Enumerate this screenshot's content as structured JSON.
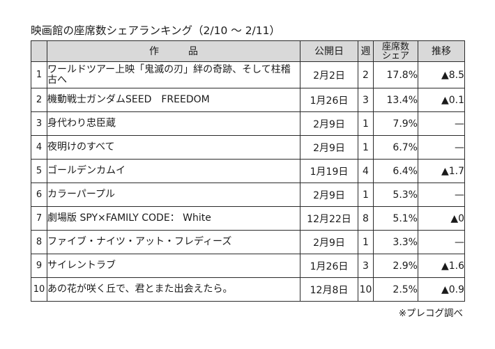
{
  "title": "映画館の座席数シェアランキング（2/10 ～ 2/11）",
  "headers": {
    "title_chars": [
      "作",
      "品"
    ],
    "release": "公開日",
    "week": "週",
    "share_line1": "座席数",
    "share_line2": "シェア",
    "change": "推移"
  },
  "rows": [
    {
      "rank": "1",
      "title": "ワールドツアー上映「鬼滅の刃」絆の奇跡、そして柱稽古へ",
      "release": "2月2日",
      "week": "2",
      "share": "17.8%",
      "change": "▲8.5"
    },
    {
      "rank": "2",
      "title": "機動戦士ガンダムSEED　FREEDOM",
      "release": "1月26日",
      "week": "3",
      "share": "13.4%",
      "change": "▲0.1"
    },
    {
      "rank": "3",
      "title": "身代わり忠臣蔵",
      "release": "2月9日",
      "week": "1",
      "share": "7.9%",
      "change": "—"
    },
    {
      "rank": "4",
      "title": "夜明けのすべて",
      "release": "2月9日",
      "week": "1",
      "share": "6.7%",
      "change": "—"
    },
    {
      "rank": "5",
      "title": "ゴールデンカムイ",
      "release": "1月19日",
      "week": "4",
      "share": "6.4%",
      "change": "▲1.7"
    },
    {
      "rank": "6",
      "title": "カラーパープル",
      "release": "2月9日",
      "week": "1",
      "share": "5.3%",
      "change": "—"
    },
    {
      "rank": "7",
      "title": "劇場版 SPY×FAMILY CODE： White",
      "release": "12月22日",
      "week": "8",
      "share": "5.1%",
      "change": "▲0"
    },
    {
      "rank": "8",
      "title": "ファイブ・ナイツ・アット・フレディーズ",
      "release": "2月9日",
      "week": "1",
      "share": "3.3%",
      "change": "—"
    },
    {
      "rank": "9",
      "title": "サイレントラブ",
      "release": "1月26日",
      "week": "3",
      "share": "2.9%",
      "change": "▲1.6"
    },
    {
      "rank": "10",
      "title": "あの花が咲く丘で、君とまた出会えたら。",
      "release": "12月8日",
      "week": "10",
      "share": "2.5%",
      "change": "▲0.9"
    }
  ],
  "source": "※プレコグ調べ",
  "colors": {
    "header_bg": "#d9d9d9",
    "border": "#2a2a2a",
    "text": "#1a1a1a"
  }
}
